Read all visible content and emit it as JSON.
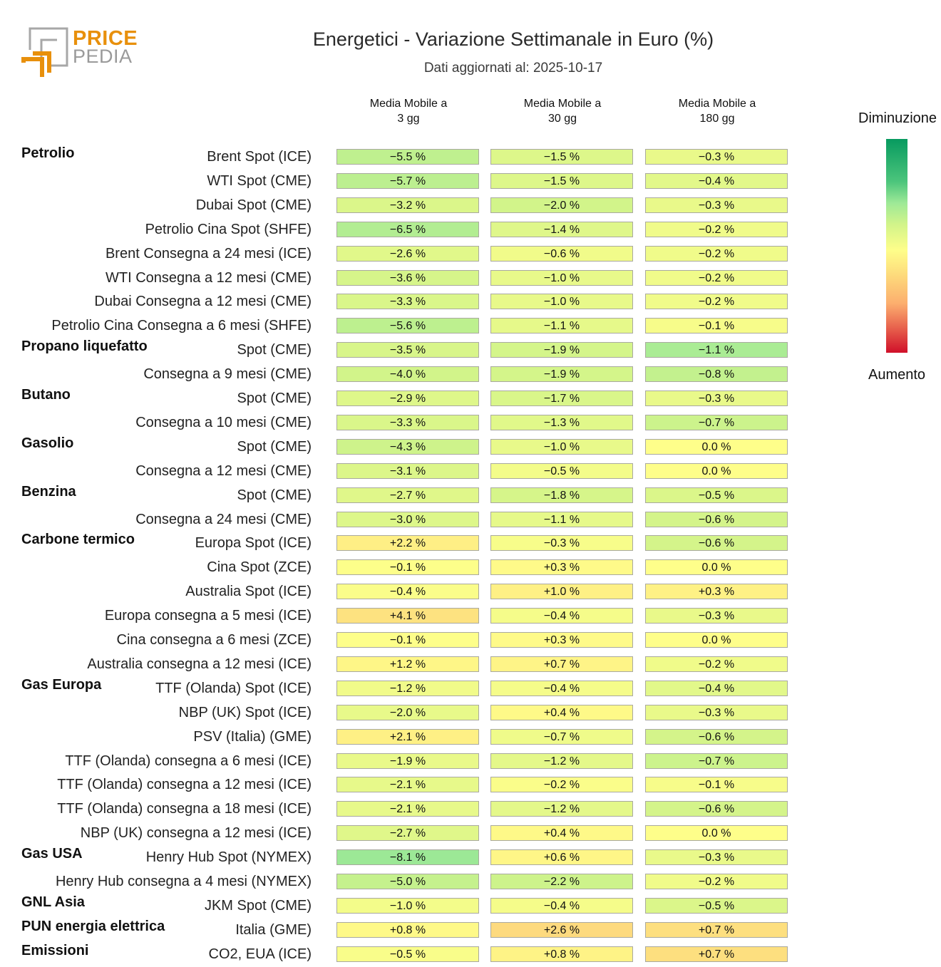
{
  "logo": {
    "word1": "PRICE",
    "word2": "PEDIA"
  },
  "chart_data": {
    "type": "heatmap",
    "title": "Energetici - Variazione Settimanale in Euro (%)",
    "subtitle": "Dati aggiornati al: 2025-10-17",
    "columns": [
      "Media Mobile a\n3 gg",
      "Media Mobile a\n30 gg",
      "Media Mobile a\n180 gg"
    ],
    "column_lines": [
      [
        "Media Mobile a",
        "3 gg"
      ],
      [
        "Media Mobile a",
        "30 gg"
      ],
      [
        "Media Mobile a",
        "180 gg"
      ]
    ],
    "legend": {
      "top": "Diminuzione",
      "bottom": "Aumento",
      "colors": [
        "#079a5f",
        "#9ee997",
        "#fefe8a",
        "#fdc777",
        "#d0102a"
      ]
    },
    "unit": "%",
    "rows": [
      {
        "group": "Petrolio",
        "label": "Brent Spot (ICE)",
        "values": [
          -5.5,
          -1.5,
          -0.3
        ]
      },
      {
        "group": "",
        "label": "WTI Spot (CME)",
        "values": [
          -5.7,
          -1.5,
          -0.4
        ]
      },
      {
        "group": "",
        "label": "Dubai Spot (CME)",
        "values": [
          -3.2,
          -2.0,
          -0.3
        ]
      },
      {
        "group": "",
        "label": "Petrolio Cina Spot (SHFE)",
        "values": [
          -6.5,
          -1.4,
          -0.2
        ]
      },
      {
        "group": "",
        "label": "Brent Consegna a 24 mesi (ICE)",
        "values": [
          -2.6,
          -0.6,
          -0.2
        ]
      },
      {
        "group": "",
        "label": "WTI Consegna a 12 mesi (CME)",
        "values": [
          -3.6,
          -1.0,
          -0.2
        ]
      },
      {
        "group": "",
        "label": "Dubai Consegna a 12 mesi (CME)",
        "values": [
          -3.3,
          -1.0,
          -0.2
        ]
      },
      {
        "group": "",
        "label": "Petrolio Cina Consegna a 6 mesi (SHFE)",
        "values": [
          -5.6,
          -1.1,
          -0.1
        ]
      },
      {
        "group": "Propano liquefatto",
        "label": "Spot (CME)",
        "values": [
          -3.5,
          -1.9,
          -1.1
        ]
      },
      {
        "group": "",
        "label": "Consegna a 9 mesi (CME)",
        "values": [
          -4.0,
          -1.9,
          -0.8
        ]
      },
      {
        "group": "Butano",
        "label": "Spot (CME)",
        "values": [
          -2.9,
          -1.7,
          -0.3
        ]
      },
      {
        "group": "",
        "label": "Consegna a 10 mesi (CME)",
        "values": [
          -3.3,
          -1.3,
          -0.7
        ]
      },
      {
        "group": "Gasolio",
        "label": "Spot (CME)",
        "values": [
          -4.3,
          -1.0,
          0.0
        ]
      },
      {
        "group": "",
        "label": "Consegna a 12 mesi (CME)",
        "values": [
          -3.1,
          -0.5,
          0.0
        ]
      },
      {
        "group": "Benzina",
        "label": "Spot (CME)",
        "values": [
          -2.7,
          -1.8,
          -0.5
        ]
      },
      {
        "group": "",
        "label": "Consegna a 24 mesi (CME)",
        "values": [
          -3.0,
          -1.1,
          -0.6
        ]
      },
      {
        "group": "Carbone termico",
        "label": "Europa Spot (ICE)",
        "values": [
          2.2,
          -0.3,
          -0.6
        ]
      },
      {
        "group": "",
        "label": "Cina Spot (ZCE)",
        "values": [
          -0.1,
          0.3,
          0.0
        ]
      },
      {
        "group": "",
        "label": "Australia Spot (ICE)",
        "values": [
          -0.4,
          1.0,
          0.3
        ]
      },
      {
        "group": "",
        "label": "Europa consegna a 5 mesi (ICE)",
        "values": [
          4.1,
          -0.4,
          -0.3
        ]
      },
      {
        "group": "",
        "label": "Cina consegna a 6 mesi (ZCE)",
        "values": [
          -0.1,
          0.3,
          0.0
        ]
      },
      {
        "group": "",
        "label": "Australia consegna a 12 mesi (ICE)",
        "values": [
          1.2,
          0.7,
          -0.2
        ]
      },
      {
        "group": "Gas Europa",
        "label": "TTF (Olanda) Spot (ICE)",
        "values": [
          -1.2,
          -0.4,
          -0.4
        ]
      },
      {
        "group": "",
        "label": "NBP (UK) Spot (ICE)",
        "values": [
          -2.0,
          0.4,
          -0.3
        ]
      },
      {
        "group": "",
        "label": "PSV (Italia) (GME)",
        "values": [
          2.1,
          -0.7,
          -0.6
        ]
      },
      {
        "group": "",
        "label": "TTF (Olanda) consegna a 6 mesi (ICE)",
        "values": [
          -1.9,
          -1.2,
          -0.7
        ]
      },
      {
        "group": "",
        "label": "TTF (Olanda) consegna a 12 mesi (ICE)",
        "values": [
          -2.1,
          -0.2,
          -0.1
        ]
      },
      {
        "group": "",
        "label": "TTF (Olanda) consegna a 18 mesi (ICE)",
        "values": [
          -2.1,
          -1.2,
          -0.6
        ]
      },
      {
        "group": "",
        "label": "NBP (UK) consegna a 12 mesi (ICE)",
        "values": [
          -2.7,
          0.4,
          0.0
        ]
      },
      {
        "group": "Gas USA",
        "label": "Henry Hub Spot (NYMEX)",
        "values": [
          -8.1,
          0.6,
          -0.3
        ]
      },
      {
        "group": "",
        "label": "Henry Hub consegna a 4 mesi (NYMEX)",
        "values": [
          -5.0,
          -2.2,
          -0.2
        ]
      },
      {
        "group": "GNL Asia",
        "label": "JKM Spot (CME)",
        "values": [
          -1.0,
          -0.4,
          -0.5
        ]
      },
      {
        "group": "PUN energia elettrica",
        "label": "Italia (GME)",
        "values": [
          0.8,
          2.6,
          0.7
        ]
      },
      {
        "group": "Emissioni",
        "label": "CO2, EUA (ICE)",
        "values": [
          -0.5,
          0.8,
          0.7
        ]
      }
    ],
    "color_scale_max_abs": [
      16,
      8,
      2.5
    ]
  }
}
